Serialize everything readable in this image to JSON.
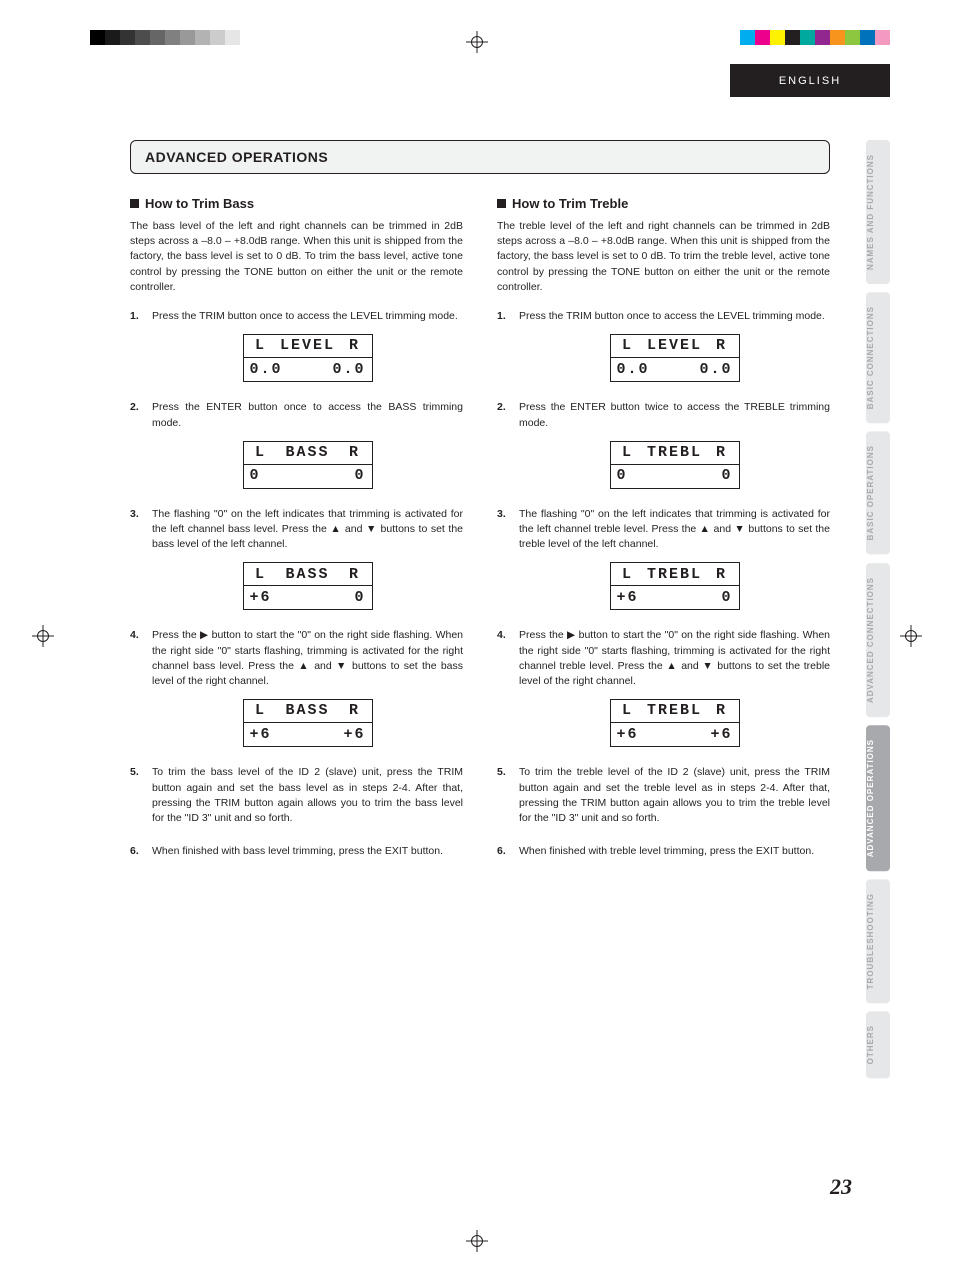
{
  "lang_tab": "ENGLISH",
  "page_number": "23",
  "section_title": "ADVANCED OPERATIONS",
  "side_tabs": [
    {
      "label": "NAMES AND FUNCTIONS",
      "active": false
    },
    {
      "label": "BASIC CONNECTIONS",
      "active": false
    },
    {
      "label": "BASIC OPERATIONS",
      "active": false
    },
    {
      "label": "ADVANCED CONNECTIONS",
      "active": false
    },
    {
      "label": "ADVANCED OPERATIONS",
      "active": true
    },
    {
      "label": "TROUBLESHOOTING",
      "active": false
    },
    {
      "label": "OTHERS",
      "active": false
    }
  ],
  "registration_colors": {
    "grayscale": [
      "#000000",
      "#1a1a1a",
      "#333333",
      "#4d4d4d",
      "#666666",
      "#808080",
      "#999999",
      "#b3b3b3",
      "#cccccc",
      "#e6e6e6"
    ],
    "cmyk": [
      "#00aeef",
      "#ec008c",
      "#fff200",
      "#231f20",
      "#00a99d",
      "#92278f",
      "#f7941d",
      "#8dc63f",
      "#0072bc",
      "#f49ac1"
    ]
  },
  "left": {
    "heading": "How to Trim Bass",
    "intro": "The bass level of the left and right channels can be trimmed in 2dB steps across a –8.0 – +8.0dB range. When this unit is shipped from the factory, the bass level is set to 0 dB. To trim the bass level, active tone control by pressing the TONE button on either the unit or the remote controller.",
    "steps": [
      {
        "text": "Press the TRIM button once to access the LEVEL trimming mode.",
        "lcd": {
          "top": [
            "L",
            "LEVEL",
            "R"
          ],
          "bottom_left": "0.0",
          "bottom_right": "0.0"
        }
      },
      {
        "text": "Press the ENTER button once to access the BASS trimming mode.",
        "lcd": {
          "top": [
            "L",
            "BASS",
            "R"
          ],
          "bottom_left": "0",
          "bottom_right": "0"
        }
      },
      {
        "text": "The flashing \"0\" on the left indicates that trimming is activated for the left channel bass level. Press the ▲ and ▼ buttons to set the bass level of the left channel.",
        "lcd": {
          "top": [
            "L",
            "BASS",
            "R"
          ],
          "bottom_left": "+6",
          "bottom_right": "0"
        }
      },
      {
        "text": "Press the ▶ button to start the \"0\" on the right side flashing. When the right side \"0\" starts flashing, trimming is activated for the right channel bass level. Press the ▲ and ▼ buttons to set the bass level of the right channel.",
        "lcd": {
          "top": [
            "L",
            "BASS",
            "R"
          ],
          "bottom_left": "+6",
          "bottom_right": "+6"
        }
      },
      {
        "text": "To trim the bass level of the ID 2 (slave) unit, press the TRIM button again and set the bass level as in steps 2-4. After that, pressing the TRIM button again allows you to trim the bass level for the \"ID 3\" unit and so forth."
      },
      {
        "text": "When finished with bass level trimming, press the EXIT button."
      }
    ]
  },
  "right": {
    "heading": "How to Trim Treble",
    "intro": "The treble level of the left and right channels can be trimmed in 2dB steps across a –8.0 – +8.0dB range. When this unit is shipped from the factory, the bass level is set to 0 dB. To trim the treble level, active tone control by pressing the TONE button on either the unit or the remote controller.",
    "steps": [
      {
        "text": "Press the TRIM button once to access the LEVEL trimming mode.",
        "lcd": {
          "top": [
            "L",
            "LEVEL",
            "R"
          ],
          "bottom_left": "0.0",
          "bottom_right": "0.0"
        }
      },
      {
        "text": "Press the ENTER button twice to access the TREBLE trimming mode.",
        "lcd": {
          "top": [
            "L",
            "TREBL",
            "R"
          ],
          "bottom_left": "0",
          "bottom_right": "0"
        }
      },
      {
        "text": "The flashing \"0\" on the left indicates that trimming is activated for the left channel treble level. Press the ▲ and ▼ buttons to set the treble level of the left channel.",
        "lcd": {
          "top": [
            "L",
            "TREBL",
            "R"
          ],
          "bottom_left": "+6",
          "bottom_right": "0"
        }
      },
      {
        "text": "Press the ▶ button to start the \"0\" on the right side flashing. When the right side \"0\" starts flashing, trimming is activated for the right channel treble level. Press the ▲ and ▼ buttons to set the treble level of the right channel.",
        "lcd": {
          "top": [
            "L",
            "TREBL",
            "R"
          ],
          "bottom_left": "+6",
          "bottom_right": "+6"
        }
      },
      {
        "text": "To trim the treble level of the ID 2 (slave) unit, press the TRIM button again and set the treble level as in steps 2-4. After that, pressing the TRIM button again allows you to trim the treble level for the \"ID 3\" unit and so forth."
      },
      {
        "text": "When finished with treble level trimming, press the EXIT button."
      }
    ]
  }
}
